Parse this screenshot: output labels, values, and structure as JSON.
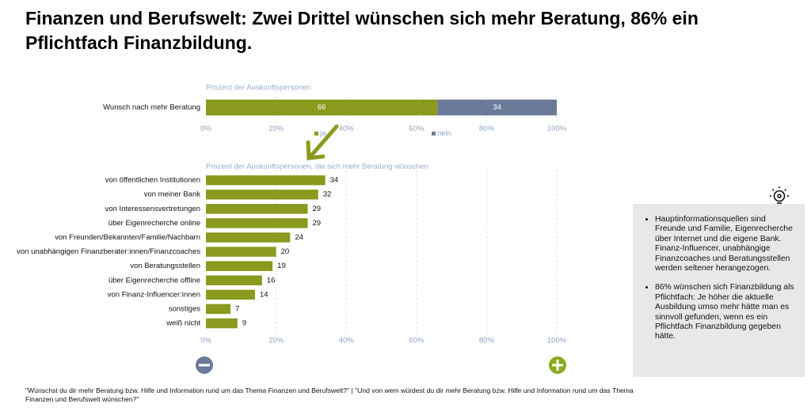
{
  "page": {
    "title": "Finanzen und Berufswelt: Zwei Drittel wünschen sich mehr Beratung, 86% ein Pflichtfach Finanzbildung.",
    "notes": [
      "Hauptinformationsquellen sind Freunde und Familie, Eigenrecherche über Internet und die eigene Bank. Finanz-Influencer, unabhängige Finanzcoaches und Beratungsstellen werden seltener herangezogen.",
      "86% wünschen sich Finanzbildung als Pflichtfach: Je höher die aktuelle Ausbildung umso mehr hätte man es sinnvoll gefunden, wenn es ein Pflichtfach Finanzbildung gegeben hätte."
    ],
    "footnote": "\"Wünschst du dir mehr Beratung bzw. Hilfe und Information rund um das Thema Finanzen und Berufswelt?\" | \"Und von wem würdest du dir mehr Beratung bzw. Hilfe und Information rund um das Thema Finanzen und Berufswelt wünschen?\""
  },
  "chart_data": [
    {
      "type": "bar",
      "orientation": "horizontal",
      "stacked": true,
      "x_label": "Prozent der Auskunftspersonen",
      "categories": [
        "Wunsch nach mehr Beratung"
      ],
      "series": [
        {
          "name": "ja",
          "color": "#8a9a1e",
          "values": [
            66
          ]
        },
        {
          "name": "nein",
          "color": "#6b7a99",
          "values": [
            34
          ]
        }
      ],
      "xlim": [
        0,
        100
      ],
      "xticks": [
        {
          "value": 0,
          "label": "0%"
        },
        {
          "value": 20,
          "label": "20%"
        },
        {
          "value": 40,
          "label": "40%"
        },
        {
          "value": 60,
          "label": "60%"
        },
        {
          "value": 80,
          "label": "80%"
        },
        {
          "value": 100,
          "label": "100%"
        }
      ],
      "grid": true
    },
    {
      "type": "bar",
      "orientation": "horizontal",
      "x_label": "Prozent der Auskunftspersonen, die sich mehr Beratung wünschen",
      "categories": [
        "von öffentlichen Institutionen",
        "von meiner Bank",
        "von Interessensvertretungen",
        "über Eigenrecherche online",
        "von Freunden/Bekannten/Familie/Nachbarn",
        "von unabhängigen Finanzberater:innen/Finanzcoaches",
        "von Beratungsstellen",
        "über Eigenrecherche offline",
        "von Finanz-Influencer:innen",
        "sonstiges",
        "weiß nicht"
      ],
      "values": [
        34,
        32,
        29,
        29,
        24,
        20,
        19,
        16,
        14,
        7,
        9
      ],
      "color": "#8a9a1e",
      "xlim": [
        0,
        100
      ],
      "xticks": [
        {
          "value": 0,
          "label": "0%"
        },
        {
          "value": 20,
          "label": "20%"
        },
        {
          "value": 40,
          "label": "40%"
        },
        {
          "value": 60,
          "label": "60%"
        },
        {
          "value": 80,
          "label": "80%"
        },
        {
          "value": 100,
          "label": "100%"
        }
      ],
      "grid": true
    }
  ]
}
